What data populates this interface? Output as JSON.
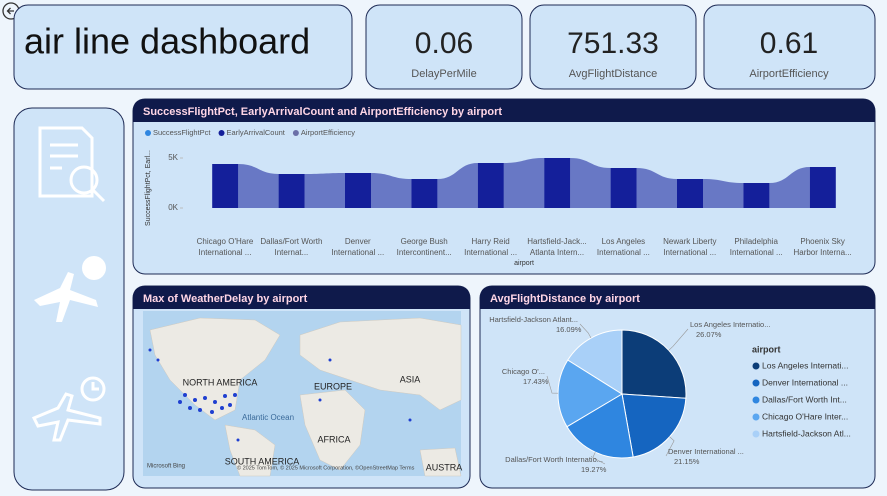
{
  "header": {
    "title": "air line dashboard"
  },
  "kpis": [
    {
      "value": 0.06,
      "label": "DelayPerMile"
    },
    {
      "value": 751.33,
      "label": "AvgFlightDistance"
    },
    {
      "value": 0.61,
      "label": "AirportEfficiency"
    }
  ],
  "ribbon_chart": {
    "type": "bar",
    "title": "SuccessFlightPct, EarlyArrivalCount and AirportEfficiency by airport",
    "y_label": "SuccessFlightPct, Earl...",
    "x_label": "airport",
    "categories": [
      "Chicago O'Hare International ...",
      "Dallas/Fort Worth Internat...",
      "Denver International ...",
      "George Bush Intercontinent...",
      "Harry Reid International ...",
      "Hartsfield-Jack... Atlanta Intern...",
      "Los Angeles International ...",
      "Newark Liberty International ...",
      "Philadelphia International ...",
      "Phoenix Sky Harbor Interna..."
    ],
    "series": [
      {
        "name": "SuccessFlightPct",
        "color": "#2f86e0",
        "values": [
          null,
          null,
          null,
          null,
          null,
          null,
          null,
          null,
          null,
          null
        ]
      },
      {
        "name": "EarlyArrivalCount",
        "color": "#141f9a",
        "values": [
          4400,
          3400,
          3500,
          2900,
          4500,
          5000,
          4000,
          2900,
          2500,
          4100
        ]
      },
      {
        "name": "AirportEfficiency",
        "color": "#6b6fa8",
        "values": [
          null,
          null,
          null,
          null,
          null,
          null,
          null,
          null,
          null,
          null
        ]
      }
    ],
    "ylim": [
      0,
      5000
    ],
    "yticks": [
      {
        "value": 5000,
        "label": "5K"
      },
      {
        "value": 0,
        "label": "0K"
      }
    ]
  },
  "map": {
    "title": "Max of WeatherDelay by airport",
    "labels": [
      "NORTH AMERICA",
      "EUROPE",
      "ASIA",
      "Atlantic Ocean",
      "AFRICA",
      "SOUTH AMERICA",
      "AUSTRA"
    ],
    "brand": "Microsoft Bing",
    "credits": "© 2025 TomTom, © 2025 Microsoft Corporation, ©OpenStreetMap Terms"
  },
  "pie_chart": {
    "type": "pie",
    "title": "AvgFlightDistance by airport",
    "legend_title": "airport",
    "categories": [
      "Los Angeles Internati...",
      "Denver International ...",
      "Dallas/Fort Worth Int...",
      "Chicago O'Hare Inter...",
      "Hartsfield-Jackson Atl..."
    ],
    "slice_labels": [
      "Los Angeles Internatio...",
      "Denver International ...",
      "Dallas/Fort Worth Internatio...",
      "Chicago O'...",
      "Hartsfield-Jackson Atlant..."
    ],
    "values": [
      26.07,
      21.15,
      19.27,
      17.43,
      16.09
    ],
    "value_labels": [
      "26.07%",
      "21.15%",
      "19.27%",
      "17.43%",
      "16.09%"
    ],
    "colors": [
      "#0c3d78",
      "#1565c0",
      "#2f86e0",
      "#5aa6f0",
      "#a9d0f8"
    ]
  }
}
